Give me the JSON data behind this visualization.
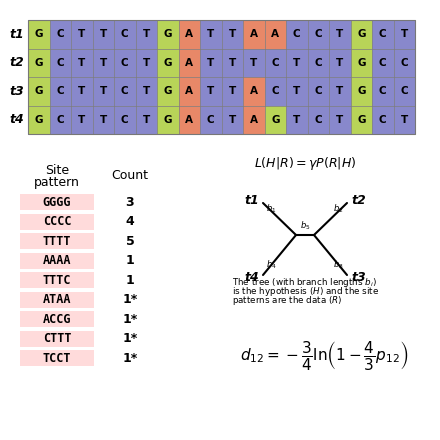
{
  "sequences": {
    "t1": [
      "G",
      "C",
      "T",
      "T",
      "C",
      "T",
      "G",
      "A",
      "T",
      "T",
      "A",
      "A",
      "C",
      "C",
      "T",
      "G",
      "C",
      "T"
    ],
    "t2": [
      "G",
      "C",
      "T",
      "T",
      "C",
      "T",
      "G",
      "A",
      "T",
      "T",
      "T",
      "C",
      "T",
      "C",
      "T",
      "G",
      "C",
      "C"
    ],
    "t3": [
      "G",
      "C",
      "T",
      "T",
      "C",
      "T",
      "G",
      "A",
      "T",
      "T",
      "A",
      "C",
      "T",
      "C",
      "T",
      "G",
      "C",
      "C"
    ],
    "t4": [
      "G",
      "C",
      "T",
      "T",
      "C",
      "T",
      "G",
      "A",
      "C",
      "T",
      "A",
      "G",
      "T",
      "C",
      "T",
      "G",
      "C",
      "T"
    ]
  },
  "taxa": [
    "t1",
    "t2",
    "t3",
    "t4"
  ],
  "color_map": {
    "G": "#b8d458",
    "C": "#8888cc",
    "T": "#8888cc",
    "A": "#e88868"
  },
  "site_patterns": [
    "GGGG",
    "CCCC",
    "TTTT",
    "AAAA",
    "TTTC",
    "ATAA",
    "ACCG",
    "CTTT",
    "TCCT"
  ],
  "counts": [
    "3",
    "4",
    "5",
    "1",
    "1",
    "1*",
    "1*",
    "1*",
    "1*"
  ],
  "starred": [
    false,
    false,
    false,
    false,
    false,
    true,
    true,
    true,
    true
  ],
  "pink_bg": "#ffcccc",
  "white": "#ffffff"
}
